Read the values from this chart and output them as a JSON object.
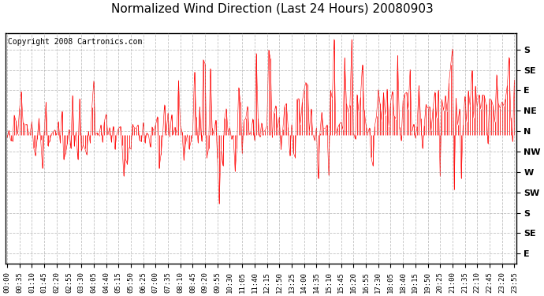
{
  "title": "Normalized Wind Direction (Last 24 Hours) 20080903",
  "copyright_text": "Copyright 2008 Cartronics.com",
  "line_color": "#ff0000",
  "background_color": "#ffffff",
  "grid_color": "#999999",
  "ytick_labels": [
    "S",
    "SE",
    "E",
    "NE",
    "N",
    "NW",
    "W",
    "SW",
    "S",
    "SE",
    "E"
  ],
  "ytick_values": [
    10,
    9,
    8,
    7,
    6,
    5,
    4,
    3,
    2,
    1,
    0
  ],
  "ylim": [
    -0.5,
    10.8
  ],
  "title_fontsize": 11,
  "copyright_fontsize": 7,
  "tick_fontsize": 6.5,
  "ytick_fontsize": 8
}
